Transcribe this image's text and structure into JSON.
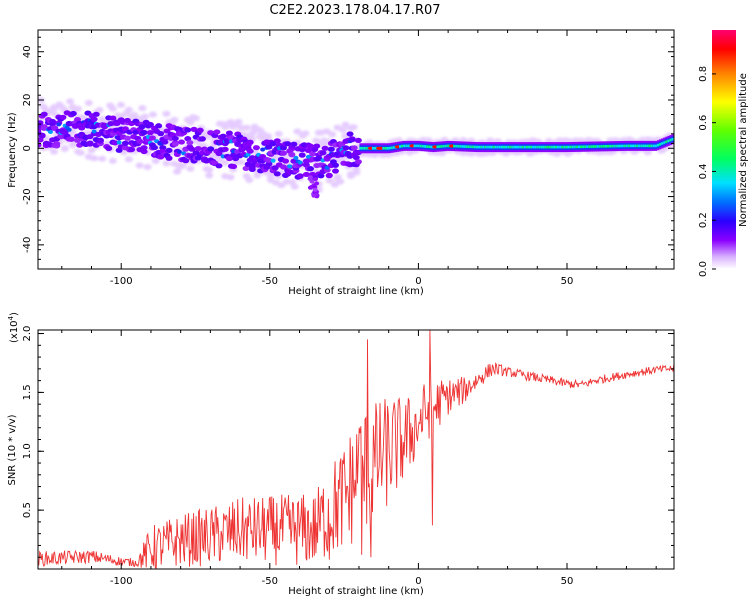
{
  "title": "C2E2.2023.178.04.17.R07",
  "chart_data": [
    {
      "type": "heatmap",
      "name": "spectrogram",
      "xlabel": "Height of straight line (km)",
      "ylabel": "Frequency (Hz)",
      "xlim": [
        -128,
        86
      ],
      "ylim": [
        -50,
        49
      ],
      "xticks": [
        -100,
        -50,
        0,
        50
      ],
      "yticks": [
        -40,
        -20,
        0,
        20,
        40
      ],
      "colorbar": {
        "label": "Normalized spectral amplitude",
        "range": [
          0,
          0.98
        ],
        "ticks": [
          0.0,
          0.2,
          0.4,
          0.6,
          0.8
        ],
        "colors": [
          "#ffffff",
          "#d9b3ff",
          "#8a00ff",
          "#2a00ff",
          "#0070ff",
          "#00e0ff",
          "#00ff60",
          "#60ff00",
          "#ffff00",
          "#ff8000",
          "#ff0000",
          "#ff0070"
        ]
      },
      "ridge": {
        "x": [
          -128,
          -110,
          -100,
          -90,
          -80,
          -70,
          -60,
          -50,
          -45,
          -40,
          -35,
          -30,
          -25,
          -23,
          -18,
          -10,
          -5,
          0,
          5,
          10,
          20,
          30,
          50,
          70,
          80,
          86
        ],
        "y": [
          8,
          8,
          6,
          4,
          2,
          0,
          -1,
          -3,
          -4.5,
          -5,
          -5.5,
          -4.5,
          -2.5,
          0,
          0,
          0,
          1,
          1,
          0.5,
          1,
          0.5,
          0.5,
          0.5,
          1,
          1,
          4
        ]
      }
    },
    {
      "type": "line",
      "name": "snr",
      "xlabel": "Height of straight line (km)",
      "ylabel": "SNR (10 * v/v)",
      "scale_label": "(x10",
      "scale_exp": "4",
      "scale_close": ")",
      "xlim": [
        -128,
        86
      ],
      "ylim": [
        0,
        2.03
      ],
      "xticks": [
        -100,
        -50,
        0,
        50
      ],
      "yticks": [
        0.5,
        1.0,
        1.5,
        2.0
      ],
      "color": "#ee3333",
      "envelope": {
        "x": [
          -128,
          -110,
          -100,
          -95,
          -90,
          -80,
          -70,
          -60,
          -50,
          -40,
          -35,
          -30,
          -25,
          -20,
          -15,
          -10,
          -5,
          0,
          2,
          5,
          10,
          15,
          20,
          25,
          30,
          40,
          50,
          55,
          60,
          70,
          80,
          86
        ],
        "y": [
          0.08,
          0.1,
          0.06,
          0.05,
          0.15,
          0.22,
          0.25,
          0.3,
          0.3,
          0.3,
          0.3,
          0.45,
          0.55,
          0.75,
          0.85,
          0.95,
          1.05,
          1.2,
          1.3,
          1.35,
          1.45,
          1.5,
          1.6,
          1.7,
          1.67,
          1.62,
          1.57,
          1.56,
          1.6,
          1.65,
          1.69,
          1.7
        ]
      },
      "noise": {
        "x": [
          -128,
          -110,
          -95,
          -90,
          -60,
          -35,
          -30,
          -20,
          -10,
          0,
          5,
          10,
          20,
          30,
          86
        ],
        "amp": [
          0.08,
          0.07,
          0.04,
          0.25,
          0.35,
          0.4,
          0.5,
          0.7,
          0.6,
          0.35,
          0.3,
          0.2,
          0.1,
          0.05,
          0.04
        ]
      },
      "features": [
        {
          "x": -30,
          "y": 0.08
        },
        {
          "x": -20,
          "y": 1.2
        },
        {
          "x": -19,
          "y": 0.12
        },
        {
          "x": -17,
          "y": 1.95
        },
        {
          "x": -16,
          "y": 0.1
        },
        {
          "x": 4,
          "y": 2.03
        },
        {
          "x": 4.8,
          "y": 0.37
        }
      ]
    }
  ]
}
